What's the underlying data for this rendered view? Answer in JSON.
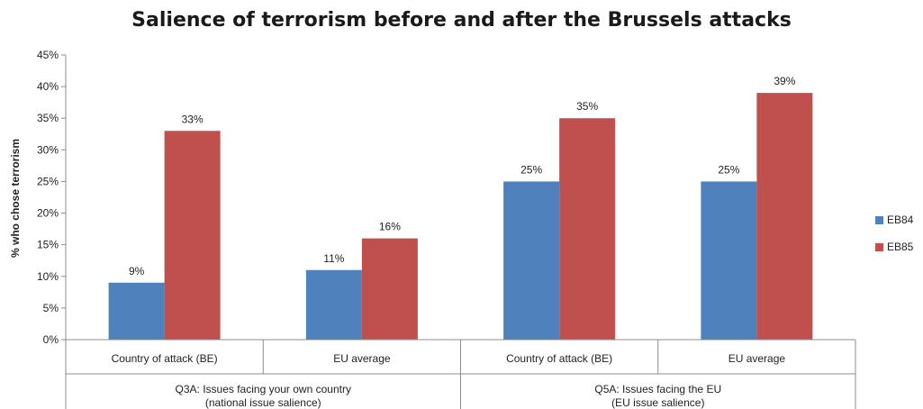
{
  "colors": {
    "EB84": "#4f81bd",
    "EB85": "#c0504d"
  },
  "chart_data": {
    "type": "bar",
    "title": "Salience of terrorism before and after the Brussels attacks",
    "ylabel": "% who chose terrorism",
    "ylim": [
      0,
      45
    ],
    "yticks": [
      "0%",
      "5%",
      "10%",
      "15%",
      "20%",
      "25%",
      "30%",
      "35%",
      "40%",
      "45%"
    ],
    "categories": [
      "Country of attack (BE)",
      "EU average",
      "Country of attack (BE)",
      "EU average"
    ],
    "groups": [
      {
        "lines": [
          "Q3A: Issues facing your own country",
          "(national issue salience)"
        ]
      },
      {
        "lines": [
          "Q5A: Issues facing the EU",
          "(EU issue salience)"
        ]
      }
    ],
    "series": [
      {
        "name": "EB84",
        "values": [
          9,
          11,
          25,
          25
        ],
        "labels": [
          "9%",
          "11%",
          "25%",
          "25%"
        ]
      },
      {
        "name": "EB85",
        "values": [
          33,
          16,
          35,
          39
        ],
        "labels": [
          "33%",
          "16%",
          "35%",
          "39%"
        ]
      }
    ],
    "legend_position": "right",
    "grid": false
  }
}
